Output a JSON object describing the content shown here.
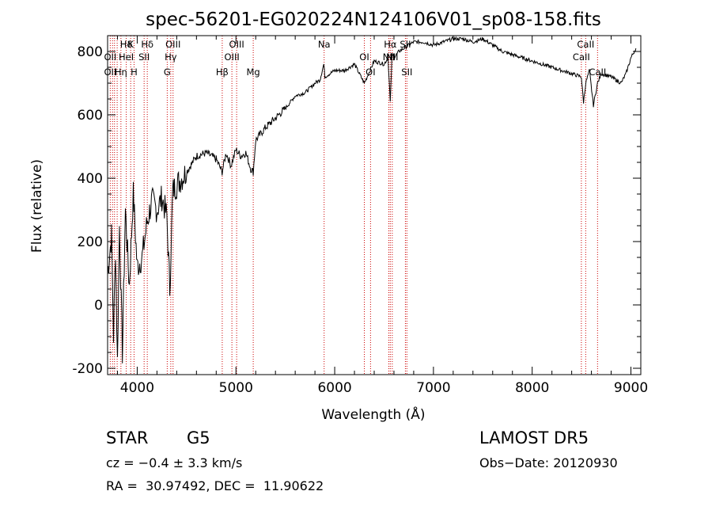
{
  "chart_data": {
    "type": "line",
    "title": "spec-56201-EG020224N124106V01_sp08-158.fits",
    "xlabel": "Wavelength (Å)",
    "ylabel": "Flux (relative)",
    "xlim": [
      3700,
      9100
    ],
    "ylim": [
      -220,
      850
    ],
    "xticks": [
      4000,
      5000,
      6000,
      7000,
      8000,
      9000
    ],
    "yticks": [
      -200,
      0,
      200,
      400,
      600,
      800
    ],
    "grid": false,
    "series": [
      {
        "values_x": [
          3700,
          3740,
          3760,
          3780,
          3800,
          3820,
          3850,
          3880,
          3920,
          3960,
          4000,
          4050,
          4100,
          4150,
          4200,
          4250,
          4300,
          4330,
          4360,
          4400,
          4450,
          4500,
          4600,
          4700,
          4800,
          4860,
          4900,
          4950,
          5000,
          5050,
          5100,
          5150,
          5175,
          5200,
          5300,
          5400,
          5500,
          5600,
          5700,
          5800,
          5850,
          5890,
          5900,
          6000,
          6100,
          6200,
          6300,
          6400,
          6500,
          6540,
          6563,
          6580,
          6600,
          6650,
          6700,
          6800,
          6900,
          7000,
          7100,
          7200,
          7300,
          7400,
          7500,
          7600,
          7700,
          7800,
          7900,
          8000,
          8100,
          8200,
          8300,
          8400,
          8498,
          8520,
          8542,
          8580,
          8620,
          8662,
          8700,
          8800,
          8900,
          8950,
          9000,
          9050
        ],
        "values_y": [
          100,
          220,
          -100,
          180,
          -180,
          250,
          -150,
          300,
          60,
          350,
          120,
          150,
          260,
          330,
          300,
          340,
          280,
          50,
          360,
          380,
          400,
          420,
          470,
          480,
          460,
          420,
          480,
          440,
          490,
          470,
          480,
          430,
          420,
          520,
          560,
          590,
          620,
          660,
          670,
          700,
          710,
          760,
          720,
          740,
          740,
          760,
          700,
          770,
          760,
          780,
          640,
          790,
          780,
          800,
          810,
          830,
          830,
          820,
          830,
          840,
          840,
          830,
          840,
          820,
          800,
          790,
          780,
          770,
          760,
          750,
          740,
          730,
          720,
          640,
          700,
          740,
          630,
          700,
          730,
          720,
          700,
          730,
          780,
          810
        ]
      }
    ],
    "line_labels": [
      {
        "name": "Hδ",
        "x": 3889
      },
      {
        "name": "K",
        "x": 3934
      },
      {
        "name": "Hδ",
        "x": 4102
      },
      {
        "name": "OIII",
        "x": 4363
      },
      {
        "name": "OII",
        "x": 3727
      },
      {
        "name": "HeI",
        "x": 3889
      },
      {
        "name": "SII",
        "x": 4070
      },
      {
        "name": "Hγ",
        "x": 4340
      },
      {
        "name": "OII",
        "x": 3727
      },
      {
        "name": "Hη",
        "x": 3835
      },
      {
        "name": "H",
        "x": 3968
      },
      {
        "name": "G",
        "x": 4304
      },
      {
        "name": "OIII",
        "x": 5007
      },
      {
        "name": "OIII",
        "x": 4959
      },
      {
        "name": "Hβ",
        "x": 4861
      },
      {
        "name": "Mg",
        "x": 5175
      },
      {
        "name": "Na",
        "x": 5893
      },
      {
        "name": "OI",
        "x": 6300
      },
      {
        "name": "OI",
        "x": 6363
      },
      {
        "name": "Hα",
        "x": 6563
      },
      {
        "name": "SII",
        "x": 6716
      },
      {
        "name": "NII",
        "x": 6548
      },
      {
        "name": "NII",
        "x": 6583
      },
      {
        "name": "SII",
        "x": 6731
      },
      {
        "name": "CaII",
        "x": 8542
      },
      {
        "name": "CaII",
        "x": 8498
      },
      {
        "name": "CaII",
        "x": 8662
      }
    ],
    "line_positions": [
      3727,
      3750,
      3770,
      3797,
      3835,
      3889,
      3934,
      3968,
      4070,
      4102,
      4304,
      4340,
      4363,
      4861,
      4959,
      5007,
      5175,
      5893,
      6300,
      6363,
      6548,
      6563,
      6583,
      6716,
      6731,
      8498,
      8542,
      8662
    ]
  },
  "info": {
    "object_class": "STAR",
    "subclass": "G5",
    "survey": "LAMOST DR5",
    "cz": "cz = −0.4 ± 3.3 km/s",
    "obs_date": "Obs−Date: 20120930",
    "coords": "RA =  30.97492, DEC =  11.90622"
  },
  "colors": {
    "line_marker": "#cc0000",
    "spectrum": "#000000"
  }
}
